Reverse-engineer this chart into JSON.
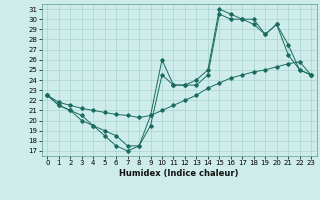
{
  "title": "",
  "xlabel": "Humidex (Indice chaleur)",
  "background_color": "#ceecea",
  "grid_color": "#aad4d0",
  "line_color": "#1a6b5e",
  "xlim": [
    -0.5,
    23.5
  ],
  "ylim": [
    16.5,
    31.5
  ],
  "xticks": [
    0,
    1,
    2,
    3,
    4,
    5,
    6,
    7,
    8,
    9,
    10,
    11,
    12,
    13,
    14,
    15,
    16,
    17,
    18,
    19,
    20,
    21,
    22,
    23
  ],
  "yticks": [
    17,
    18,
    19,
    20,
    21,
    22,
    23,
    24,
    25,
    26,
    27,
    28,
    29,
    30,
    31
  ],
  "line1_x": [
    0,
    1,
    2,
    3,
    4,
    5,
    6,
    7,
    8,
    9,
    10,
    11,
    12,
    13,
    14,
    15,
    16,
    17,
    18,
    19,
    20,
    21,
    22,
    23
  ],
  "line1_y": [
    22.5,
    21.5,
    21.0,
    20.0,
    19.5,
    18.5,
    17.5,
    17.0,
    17.5,
    19.5,
    24.5,
    23.5,
    23.5,
    23.5,
    24.5,
    30.5,
    30.0,
    30.0,
    30.0,
    28.5,
    29.5,
    26.5,
    25.0,
    24.5
  ],
  "line2_x": [
    0,
    1,
    2,
    3,
    4,
    5,
    6,
    7,
    8,
    9,
    10,
    11,
    12,
    13,
    14,
    15,
    16,
    17,
    18,
    19,
    20,
    21,
    22,
    23
  ],
  "line2_y": [
    22.5,
    21.5,
    21.0,
    20.5,
    19.5,
    19.0,
    18.5,
    17.5,
    17.5,
    20.5,
    26.0,
    23.5,
    23.5,
    24.0,
    25.0,
    31.0,
    30.5,
    30.0,
    29.5,
    28.5,
    29.5,
    27.5,
    25.0,
    24.5
  ],
  "line3_x": [
    0,
    1,
    2,
    3,
    4,
    5,
    6,
    7,
    8,
    9,
    10,
    11,
    12,
    13,
    14,
    15,
    16,
    17,
    18,
    19,
    20,
    21,
    22,
    23
  ],
  "line3_y": [
    22.5,
    21.8,
    21.5,
    21.2,
    21.0,
    20.8,
    20.6,
    20.5,
    20.3,
    20.5,
    21.0,
    21.5,
    22.0,
    22.5,
    23.2,
    23.7,
    24.2,
    24.5,
    24.8,
    25.0,
    25.3,
    25.6,
    25.8,
    24.5
  ],
  "xlabel_fontsize": 6,
  "tick_fontsize": 5
}
